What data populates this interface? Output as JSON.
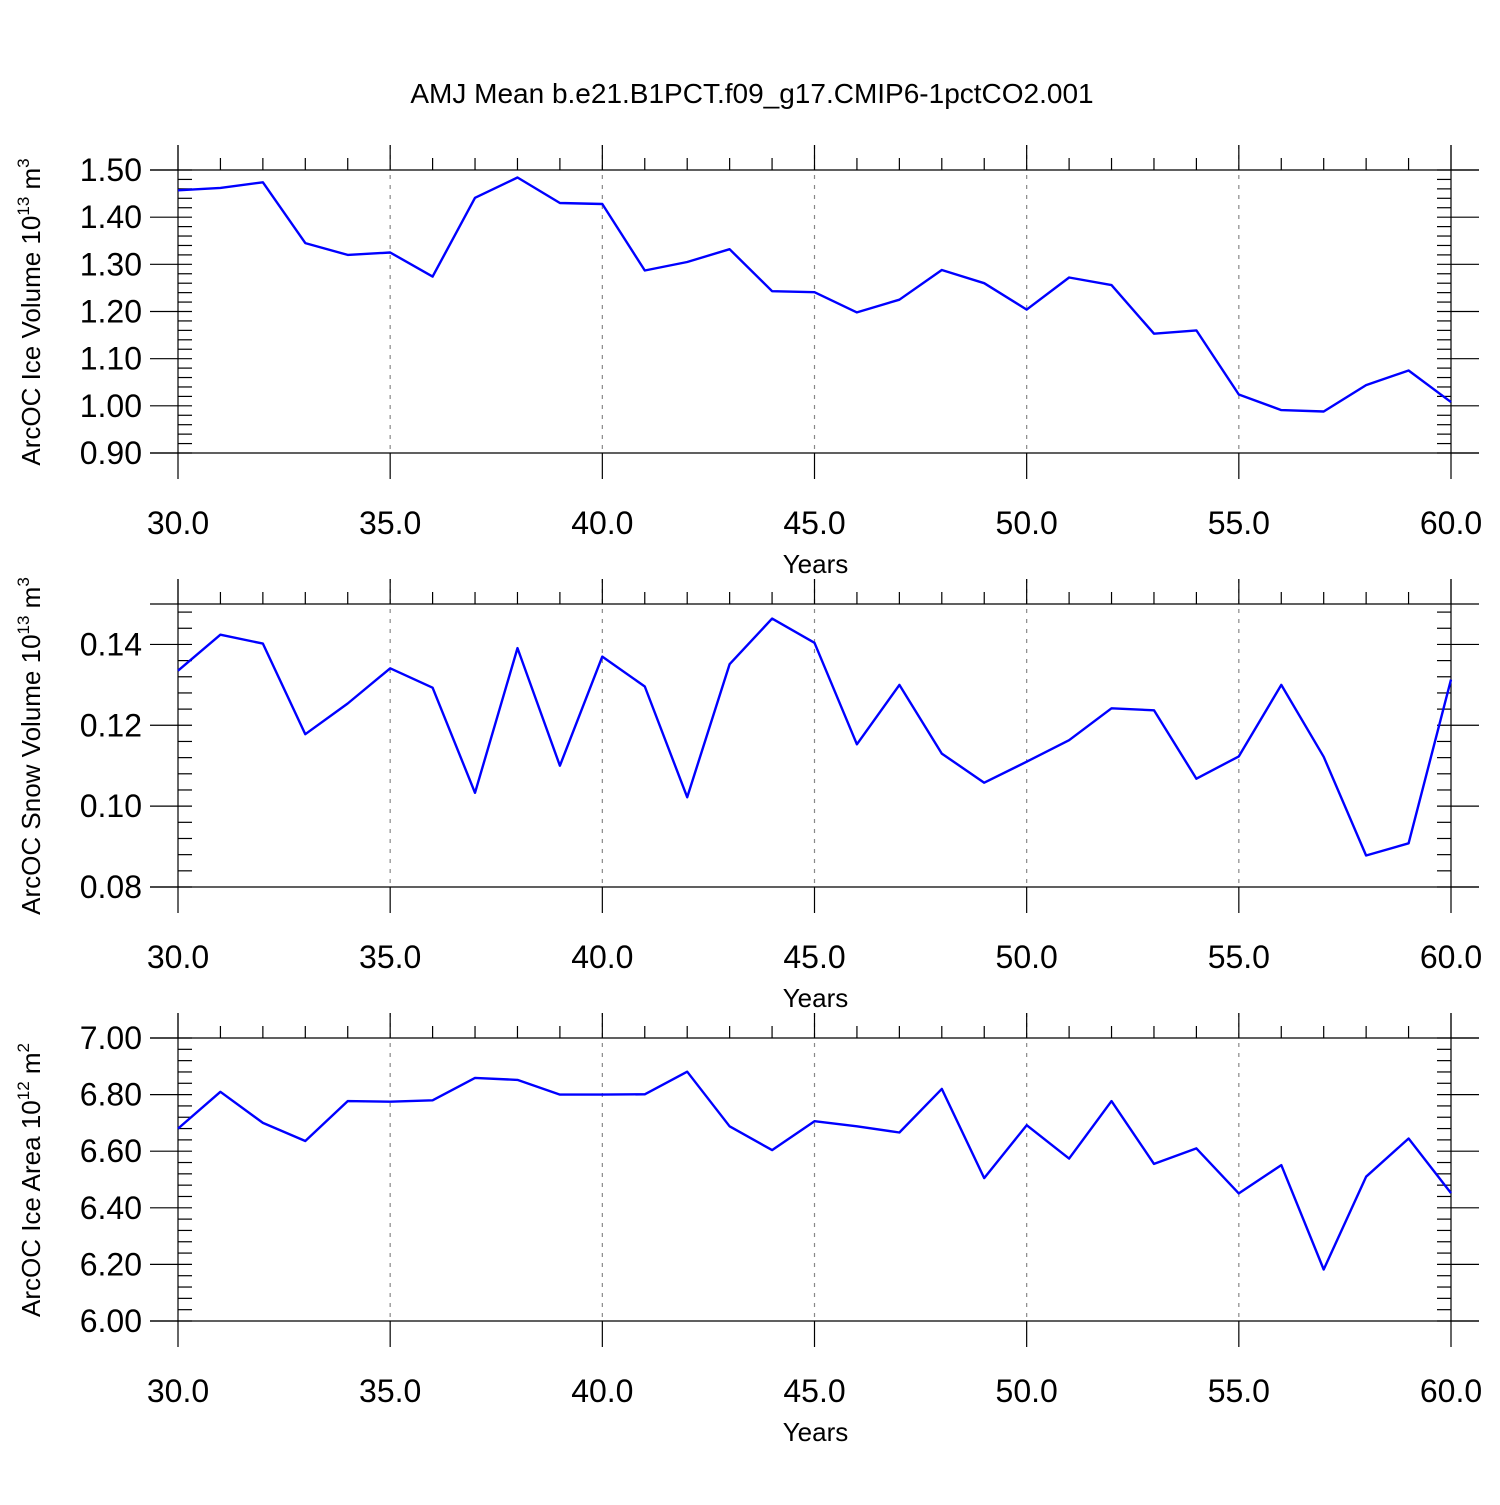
{
  "title": "AMJ Mean b.e21.B1PCT.f09_g17.CMIP6-1pctCO2.001",
  "colors": {
    "line": "#0000ff",
    "grid": "#888888",
    "axis": "#000000"
  },
  "chart_data": [
    {
      "type": "line",
      "xlabel": "Years",
      "ylabel": {
        "main": "ArcOC Ice Volume 10",
        "sup": "13",
        "unit": " m",
        "unit_sup": "3"
      },
      "xlim": [
        30,
        60
      ],
      "ylim": [
        0.9,
        1.5
      ],
      "xticks": [
        "30.0",
        "35.0",
        "40.0",
        "45.0",
        "50.0",
        "55.0",
        "60.0"
      ],
      "yticks": [
        "0.90",
        "1.00",
        "1.10",
        "1.20",
        "1.30",
        "1.40",
        "1.50"
      ],
      "x": [
        30,
        31,
        32,
        33,
        34,
        35,
        36,
        37,
        38,
        39,
        40,
        41,
        42,
        43,
        44,
        45,
        46,
        47,
        48,
        49,
        50,
        51,
        52,
        53,
        54,
        55,
        56,
        57,
        58,
        59,
        60
      ],
      "values": [
        1.457,
        1.462,
        1.474,
        1.345,
        1.32,
        1.325,
        1.274,
        1.441,
        1.484,
        1.43,
        1.428,
        1.287,
        1.305,
        1.332,
        1.243,
        1.241,
        1.198,
        1.225,
        1.288,
        1.26,
        1.204,
        1.272,
        1.256,
        1.153,
        1.16,
        1.024,
        0.991,
        0.988,
        1.044,
        1.075,
        1.008
      ]
    },
    {
      "type": "line",
      "xlabel": "Years",
      "ylabel": {
        "main": "ArcOC Snow Volume 10",
        "sup": "13",
        "unit": " m",
        "unit_sup": "3"
      },
      "xlim": [
        30,
        60
      ],
      "ylim": [
        0.08,
        0.15
      ],
      "xticks": [
        "30.0",
        "35.0",
        "40.0",
        "45.0",
        "50.0",
        "55.0",
        "60.0"
      ],
      "yticks": [
        "0.08",
        "0.10",
        "0.12",
        "0.14"
      ],
      "x": [
        30,
        31,
        32,
        33,
        34,
        35,
        36,
        37,
        38,
        39,
        40,
        41,
        42,
        43,
        44,
        45,
        46,
        47,
        48,
        49,
        50,
        51,
        52,
        53,
        54,
        55,
        56,
        57,
        58,
        59,
        60
      ],
      "values": [
        0.1335,
        0.1424,
        0.1402,
        0.1178,
        0.1254,
        0.1341,
        0.1293,
        0.1033,
        0.1391,
        0.11,
        0.137,
        0.1296,
        0.1022,
        0.1351,
        0.1464,
        0.1404,
        0.1153,
        0.13,
        0.113,
        0.1058,
        0.111,
        0.1163,
        0.1242,
        0.1237,
        0.1068,
        0.1123,
        0.13,
        0.1122,
        0.0878,
        0.0908,
        0.1313
      ]
    },
    {
      "type": "line",
      "xlabel": "Years",
      "ylabel": {
        "main": "ArcOC Ice Area 10",
        "sup": "12",
        "unit": " m",
        "unit_sup": "2"
      },
      "xlim": [
        30,
        60
      ],
      "ylim": [
        6.0,
        7.0
      ],
      "xticks": [
        "30.0",
        "35.0",
        "40.0",
        "45.0",
        "50.0",
        "55.0",
        "60.0"
      ],
      "yticks": [
        "6.00",
        "6.20",
        "6.40",
        "6.60",
        "6.80",
        "7.00"
      ],
      "x": [
        30,
        31,
        32,
        33,
        34,
        35,
        36,
        37,
        38,
        39,
        40,
        41,
        42,
        43,
        44,
        45,
        46,
        47,
        48,
        49,
        50,
        51,
        52,
        53,
        54,
        55,
        56,
        57,
        58,
        59,
        60
      ],
      "values": [
        6.68,
        6.81,
        6.7,
        6.636,
        6.777,
        6.775,
        6.78,
        6.859,
        6.852,
        6.8,
        6.8,
        6.801,
        6.881,
        6.688,
        6.604,
        6.706,
        6.688,
        6.666,
        6.82,
        6.505,
        6.692,
        6.574,
        6.777,
        6.555,
        6.61,
        6.451,
        6.551,
        6.182,
        6.51,
        6.645,
        6.452
      ]
    }
  ]
}
